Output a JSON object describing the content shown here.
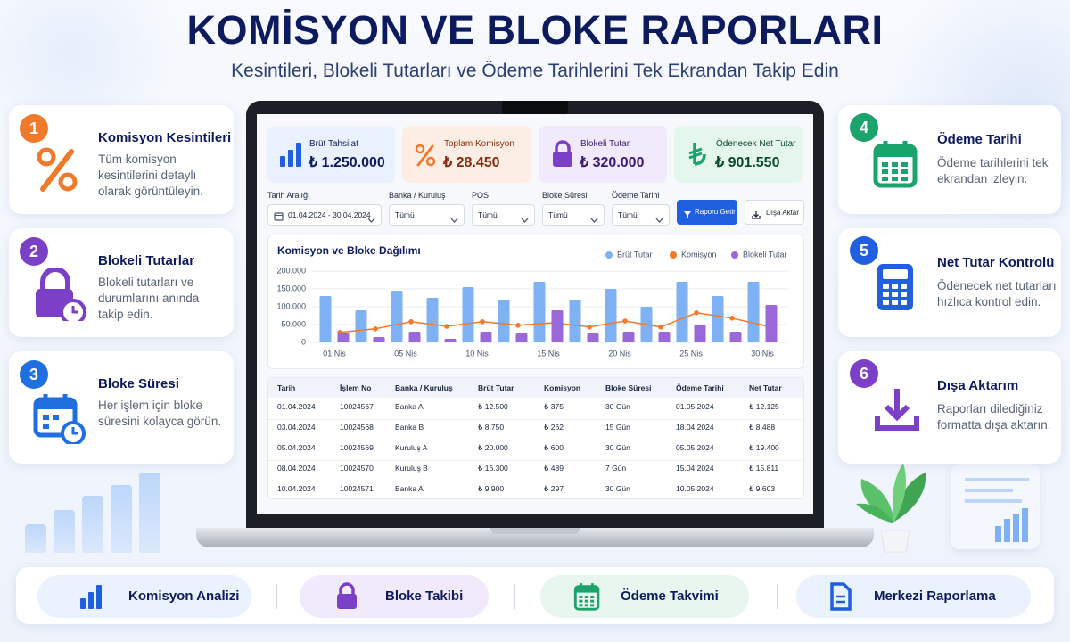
{
  "header": {
    "title": "KOMİSYON VE BLOKE RAPORLARI",
    "subtitle": "Kesintileri, Blokeli Tutarları ve Ödeme Tarihlerini Tek Ekrandan Takip Edin"
  },
  "features": [
    {
      "number": "1",
      "title": "Komisyon Kesintileri",
      "text": "Tüm komisyon kesintilerini detaylı olarak görüntüleyin."
    },
    {
      "number": "2",
      "title": "Blokeli Tutarlar",
      "text": "Blokeli tutarları ve durumlarını anında takip edin."
    },
    {
      "number": "3",
      "title": "Bloke Süresi",
      "text": "Her işlem için bloke süresini kolayca görün."
    },
    {
      "number": "4",
      "title": "Ödeme Tarihi",
      "text": "Ödeme tarihlerini tek ekrandan izleyin."
    },
    {
      "number": "5",
      "title": "Net Tutar Kontrolü",
      "text": "Ödenecek net tutarları hızlıca kontrol edin."
    },
    {
      "number": "6",
      "title": "Dışa Aktarım",
      "text": "Raporları dilediğiniz formatta dışa aktarın."
    }
  ],
  "kpis": [
    {
      "label": "Brüt Tahsilat",
      "value": "₺ 1.250.000"
    },
    {
      "label": "Toplam Komisyon",
      "value": "₺ 28.450"
    },
    {
      "label": "Blokeli Tutar",
      "value": "₺ 320.000"
    },
    {
      "label": "Ödenecek Net Tutar",
      "value": "₺ 901.550"
    }
  ],
  "filters": [
    {
      "label": "Tarih Aralığı",
      "value": "01.04.2024 - 30.04.2024"
    },
    {
      "label": "Banka / Kuruluş",
      "value": "Tümü"
    },
    {
      "label": "POS",
      "value": "Tümü"
    },
    {
      "label": "Bloke Süresi",
      "value": "Tümü"
    },
    {
      "label": "Ödeme Tarihi",
      "value": "Tümü"
    }
  ],
  "buttons": [
    "Raporu Getir",
    "Dışa Aktar"
  ],
  "chart_data": {
    "type": "bar",
    "title": "Komisyon ve Bloke Dağılımı",
    "categories": [
      "01 Nis",
      null,
      "05 Nis",
      null,
      "10 Nis",
      null,
      "15 Nis",
      null,
      "20 Nis",
      null,
      "25 Nis",
      null,
      "30 Nis"
    ],
    "series": [
      {
        "name": "Brüt Tutar",
        "type": "bar",
        "color": "#7fb2f4",
        "values": [
          130000,
          90000,
          145000,
          125000,
          155000,
          120000,
          170000,
          120000,
          150000,
          100000,
          170000,
          130000,
          170000
        ]
      },
      {
        "name": "Komisyon",
        "type": "line",
        "color": "#f07a2a",
        "values": [
          28000,
          38000,
          58000,
          45000,
          58000,
          48000,
          55000,
          43000,
          60000,
          43000,
          83000,
          68000,
          45000
        ]
      },
      {
        "name": "Blokeli Tutar",
        "type": "bar",
        "color": "#9a68d8",
        "values": [
          25000,
          15000,
          30000,
          10000,
          30000,
          25000,
          90000,
          25000,
          30000,
          30000,
          50000,
          30000,
          105000
        ]
      }
    ],
    "ylim": [
      0,
      200000
    ],
    "yticks": [
      0,
      {
        "value": 50000,
        "label": "50.000"
      },
      {
        "value": 100000,
        "label": "100.000"
      },
      {
        "value": 150000,
        "label": "150.000"
      },
      {
        "value": 200000,
        "label": "200.000"
      }
    ],
    "grid": true,
    "legend": "top-right"
  },
  "table": {
    "columns": [
      "Tarih",
      "İşlem No",
      "Banka / Kuruluş",
      "Brüt Tutar",
      "Komisyon",
      "Bloke Süresi",
      "Ödeme Tarihi",
      "Net Tutar"
    ],
    "rows": [
      [
        "01.04.2024",
        "10024567",
        "Banka A",
        "₺ 12.500",
        "₺ 375",
        "30 Gün",
        "01.05.2024",
        "₺ 12.125"
      ],
      [
        "03.04.2024",
        "10024568",
        "Banka B",
        "₺ 8.750",
        "₺ 262",
        "15 Gün",
        "18.04.2024",
        "₺ 8.488"
      ],
      [
        "05.04.2024",
        "10024569",
        "Kuruluş A",
        "₺ 20.000",
        "₺ 600",
        "30 Gün",
        "05.05.2024",
        "₺ 19.400"
      ],
      [
        "08.04.2024",
        "10024570",
        "Kuruluş B",
        "₺ 16.300",
        "₺ 489",
        "7 Gün",
        "15.04.2024",
        "₺ 15.811"
      ],
      [
        "10.04.2024",
        "10024571",
        "Banka A",
        "₺ 9.900",
        "₺ 297",
        "30 Gün",
        "10.05.2024",
        "₺ 9.603"
      ]
    ]
  },
  "bottom_bar": [
    "Komisyon Analizi",
    "Bloke Takibi",
    "Ödeme Takvimi",
    "Merkezi Raporlama"
  ]
}
